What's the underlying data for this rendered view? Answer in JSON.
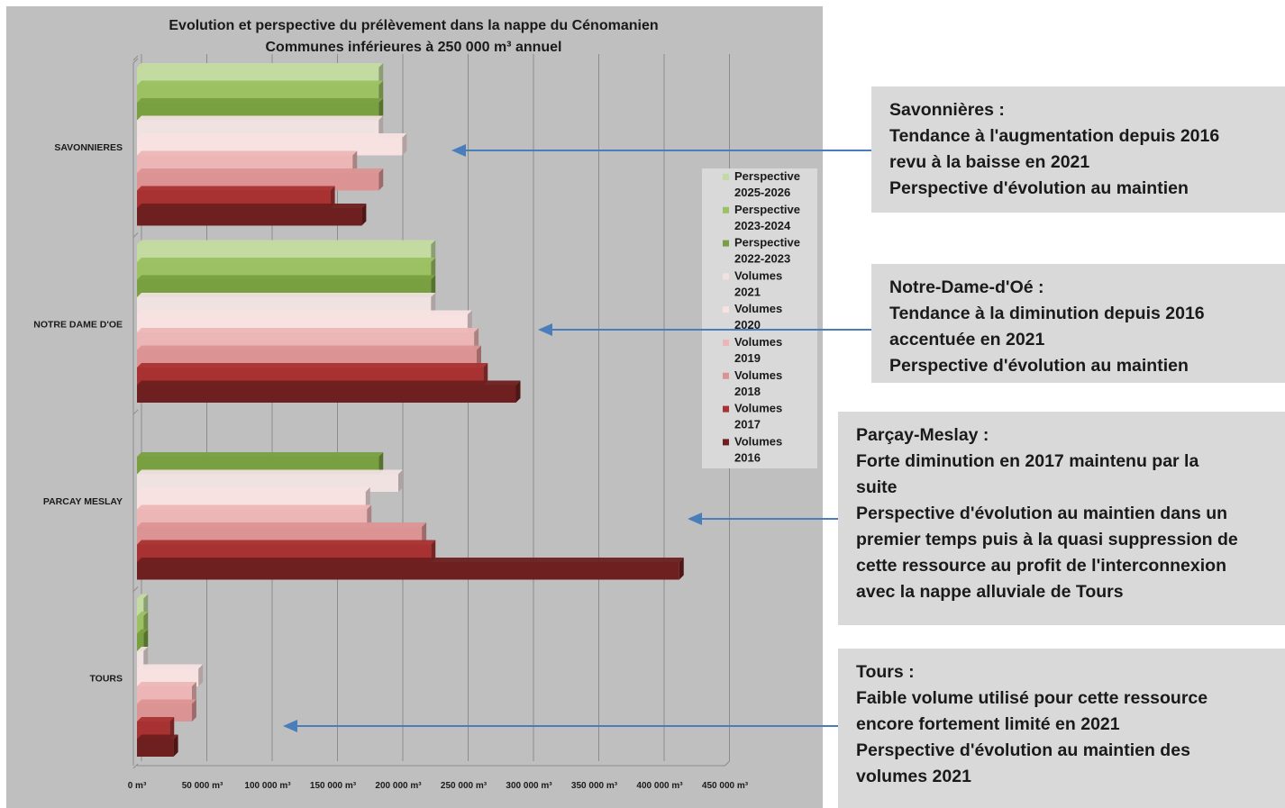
{
  "chart_data": {
    "type": "bar",
    "orientation": "horizontal",
    "title": "Evolution et perspective du prélèvement dans la nappe du Cénomanien",
    "subtitle": "Communes inférieures à 250 000 m³ annuel",
    "categories": [
      "SAVONNIERES",
      "NOTRE DAME D'OE",
      "PARCAY MESLAY",
      "TOURS"
    ],
    "x_ticks": [
      "0 m³",
      "50 000 m³",
      "100 000 m³",
      "150 000 m³",
      "200 000 m³",
      "250 000 m³",
      "300 000 m³",
      "350 000 m³",
      "400 000 m³",
      "450 000 m³"
    ],
    "xlim": [
      0,
      450000
    ],
    "grid": true,
    "legend_position": "right",
    "series": [
      {
        "name": "Perspective 2025-2026",
        "legend_lines": [
          "Perspective",
          "2025-2026"
        ],
        "color": "#c3dba0",
        "values": [
          185000,
          225000,
          0,
          5000
        ]
      },
      {
        "name": "Perspective 2023-2024",
        "legend_lines": [
          "Perspective",
          "2023-2024"
        ],
        "color": "#9bc163",
        "values": [
          185000,
          225000,
          0,
          5000
        ]
      },
      {
        "name": "Perspective 2022-2023",
        "legend_lines": [
          "Perspective",
          "2022-2023"
        ],
        "color": "#78a040",
        "values": [
          185000,
          225000,
          185000,
          5000
        ]
      },
      {
        "name": "Volumes 2021",
        "legend_lines": [
          "Volumes",
          "2021"
        ],
        "color": "#f1e2e2",
        "values": [
          185000,
          225000,
          200000,
          5000
        ]
      },
      {
        "name": "Volumes 2020",
        "legend_lines": [
          "Volumes",
          "2020"
        ],
        "color": "#f7e1e1",
        "values": [
          203000,
          253000,
          175000,
          47000
        ]
      },
      {
        "name": "Volumes 2019",
        "legend_lines": [
          "Volumes",
          "2019"
        ],
        "color": "#edb6b6",
        "values": [
          165000,
          258000,
          176000,
          42000
        ]
      },
      {
        "name": "Volumes 2018",
        "legend_lines": [
          "Volumes",
          "2018"
        ],
        "color": "#dc9393",
        "values": [
          185000,
          260000,
          218000,
          42000
        ]
      },
      {
        "name": "Volumes 2017",
        "legend_lines": [
          "Volumes",
          "2017"
        ],
        "color": "#a83232",
        "values": [
          148000,
          265000,
          225000,
          25000
        ]
      },
      {
        "name": "Volumes 2016",
        "legend_lines": [
          "Volumes",
          "2016"
        ],
        "color": "#6e1f1f",
        "values": [
          172000,
          290000,
          415000,
          28000
        ]
      }
    ]
  },
  "annotations": [
    {
      "lines": [
        "Savonnières :",
        "Tendance à l'augmentation depuis 2016",
        "revu à la baisse en 2021",
        "Perspective d'évolution au maintien"
      ]
    },
    {
      "lines": [
        "Notre-Dame-d'Oé :",
        "Tendance à la diminution depuis 2016",
        "accentuée en 2021",
        "Perspective d'évolution au maintien"
      ]
    },
    {
      "lines": [
        "Parçay-Meslay :",
        "Forte diminution en 2017 maintenu par la",
        "suite",
        "Perspective d'évolution au maintien dans un",
        "premier temps puis à la quasi suppression de",
        "cette ressource au profit de l'interconnexion",
        "avec la nappe alluviale de Tours"
      ]
    },
    {
      "lines": [
        "Tours :",
        "Faible volume utilisé pour cette ressource",
        "encore fortement limité en 2021",
        "Perspective d'évolution au maintien des",
        "volumes 2021"
      ]
    }
  ],
  "colors": {
    "chart_background": "#bfbfbf",
    "annotation_background": "#d9d9d9",
    "arrow": "#4a7ebb"
  }
}
